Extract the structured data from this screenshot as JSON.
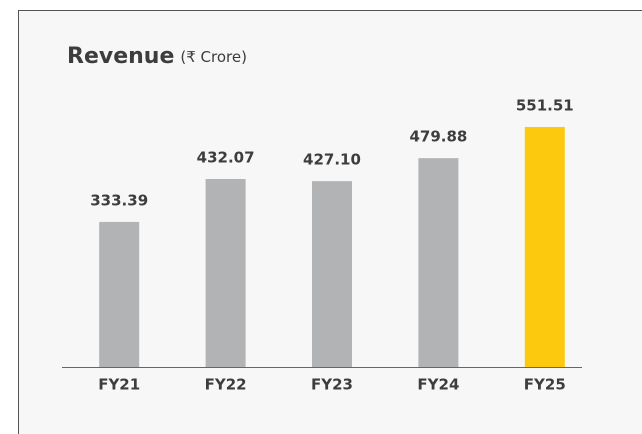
{
  "chart_data": {
    "type": "bar",
    "title": "Revenue",
    "subtitle": "(₹ Crore)",
    "categories": [
      "FY21",
      "FY22",
      "FY23",
      "FY24",
      "FY25"
    ],
    "values": [
      333.39,
      432.07,
      427.1,
      479.88,
      551.51
    ],
    "value_labels": [
      "333.39",
      "432.07",
      "427.10",
      "479.88",
      "551.51"
    ],
    "colors": [
      "#b1b3b5",
      "#b1b3b5",
      "#b1b3b5",
      "#b1b3b5",
      "#fdc90f"
    ]
  }
}
